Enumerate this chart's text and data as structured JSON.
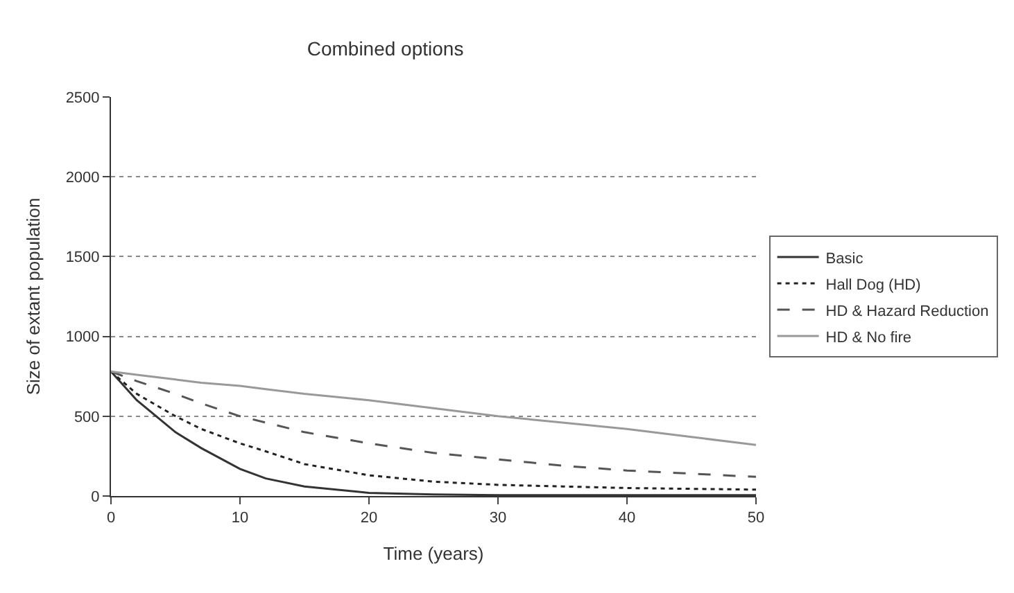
{
  "chart_data": {
    "type": "line",
    "title": "Combined options",
    "xlabel": "Time (years)",
    "ylabel": "Size of extant population",
    "x": [
      0,
      2,
      5,
      7,
      10,
      12,
      15,
      20,
      25,
      30,
      35,
      40,
      45,
      50
    ],
    "series": [
      {
        "name": "Basic",
        "color": "#333333",
        "line_style": "solid",
        "values": [
          780,
          600,
          400,
          300,
          170,
          110,
          60,
          20,
          10,
          5,
          5,
          5,
          5,
          5
        ]
      },
      {
        "name": "Hall Dog (HD)",
        "color": "#222222",
        "line_style": "dotted",
        "values": [
          780,
          640,
          500,
          420,
          330,
          280,
          200,
          130,
          90,
          70,
          60,
          50,
          45,
          40
        ]
      },
      {
        "name": "HD & Hazard Reduction",
        "color": "#555555",
        "line_style": "dashed",
        "values": [
          780,
          720,
          640,
          580,
          500,
          460,
          400,
          330,
          270,
          230,
          190,
          160,
          140,
          120
        ]
      },
      {
        "name": "HD & No fire",
        "color": "#999999",
        "line_style": "solid",
        "values": [
          780,
          760,
          730,
          710,
          690,
          670,
          640,
          600,
          550,
          500,
          460,
          420,
          370,
          320
        ]
      }
    ],
    "xlim": [
      0,
      50
    ],
    "xticks": [
      0,
      10,
      20,
      30,
      40,
      50
    ],
    "ylim": [
      0,
      2500
    ],
    "yticks": [
      0,
      500,
      1000,
      1500,
      2000,
      2500
    ],
    "grid": "y",
    "legend": "right",
    "marker": "none"
  }
}
